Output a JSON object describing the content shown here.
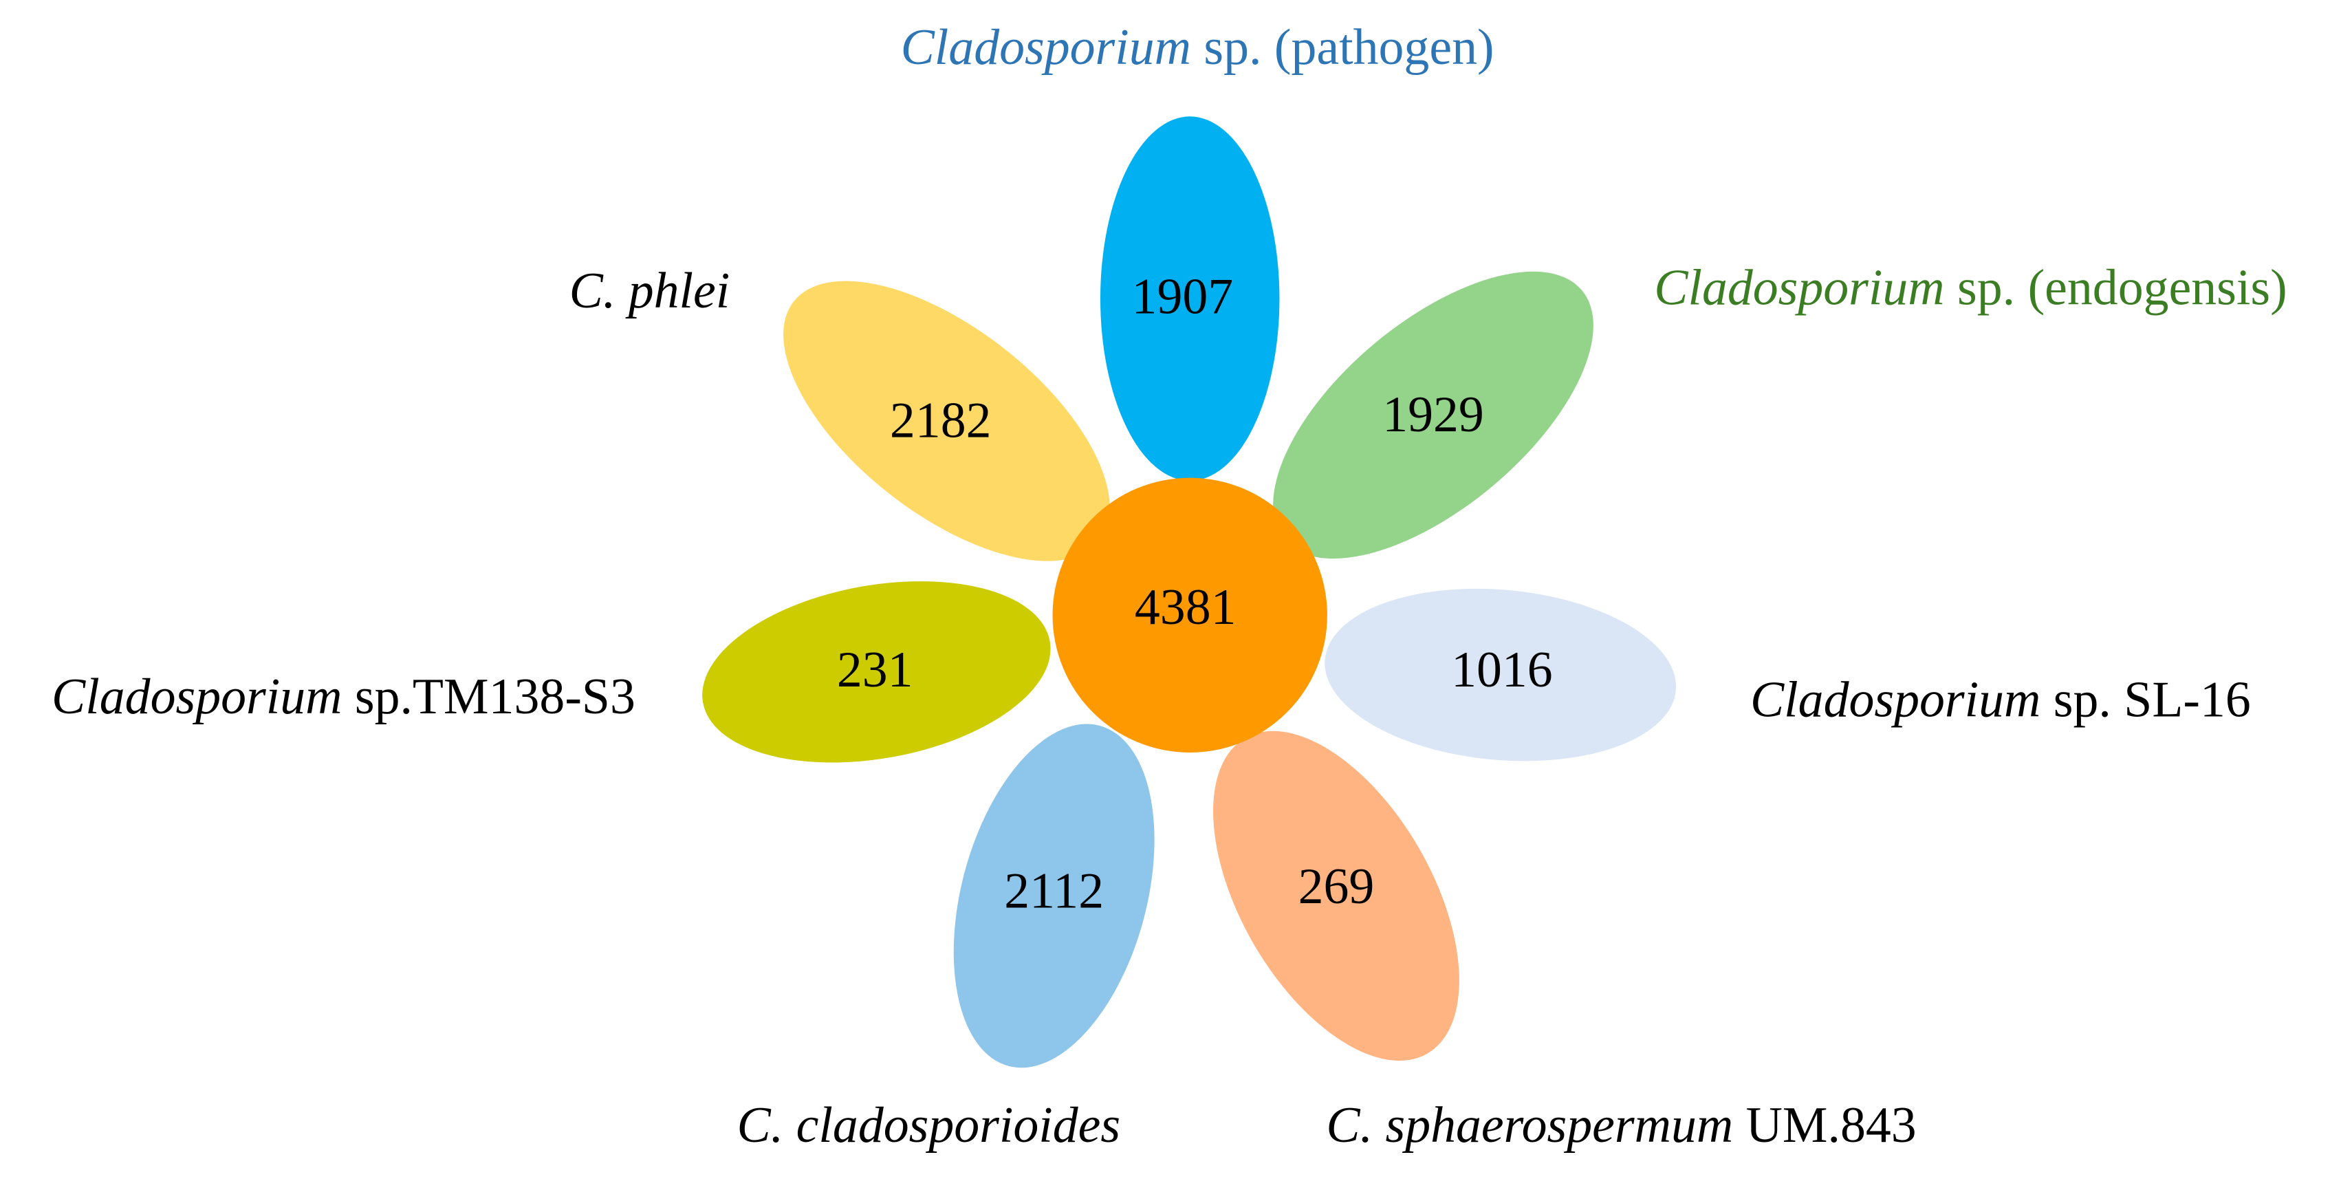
{
  "core": {
    "value": 4381,
    "color": "#ff9900"
  },
  "petals": [
    {
      "value": 1907,
      "color": "#00b0f0",
      "label_color": "#2e75b6",
      "label": [
        {
          "text": "Cladosporium",
          "italic": true
        },
        {
          "text": " sp. (pathogen)",
          "italic": false
        }
      ]
    },
    {
      "value": 1929,
      "color": "#93d38a",
      "label_color": "#3b7d23",
      "label": [
        {
          "text": "Cladosporium",
          "italic": true
        },
        {
          "text": " sp. (endogensis)",
          "italic": false
        }
      ]
    },
    {
      "value": 1016,
      "color": "#dae6f5",
      "label_color": "#000000",
      "label": [
        {
          "text": "Cladosporium",
          "italic": true
        },
        {
          "text": " sp. SL-16",
          "italic": false
        }
      ]
    },
    {
      "value": 269,
      "color": "#ffb482",
      "label_color": "#000000",
      "label": [
        {
          "text": "C. sphaerospermum",
          "italic": true
        },
        {
          "text": " UM.843",
          "italic": false
        }
      ]
    },
    {
      "value": 2112,
      "color": "#8ec5ea",
      "label_color": "#000000",
      "label": [
        {
          "text": "C. cladosporioides",
          "italic": true
        }
      ]
    },
    {
      "value": 231,
      "color": "#cccc00",
      "label_color": "#000000",
      "label": [
        {
          "text": "Cladosporium",
          "italic": true
        },
        {
          "text": " sp.TM138-S3",
          "italic": false
        }
      ]
    },
    {
      "value": 2182,
      "color": "#ffd966",
      "label_color": "#000000",
      "label": [
        {
          "text": "C. phlei",
          "italic": true
        }
      ]
    }
  ]
}
